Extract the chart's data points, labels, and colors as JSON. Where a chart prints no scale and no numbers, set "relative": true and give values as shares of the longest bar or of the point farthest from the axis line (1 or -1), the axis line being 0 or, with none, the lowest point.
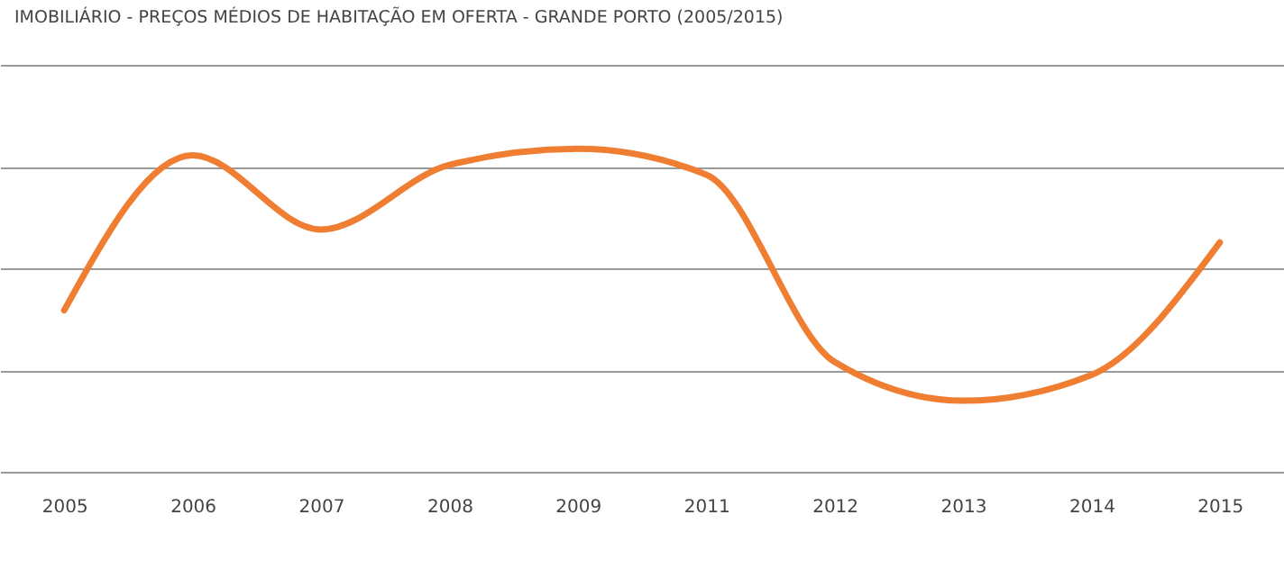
{
  "chart_data": {
    "type": "line",
    "title": "IMOBILIÁRIO - PREÇOS MÉDIOS DE HABITAÇÃO EM OFERTA - GRANDE PORTO (2005/2015)",
    "relative": true,
    "categories": [
      "2005",
      "2006",
      "2007",
      "2008",
      "2009",
      "2011",
      "2012",
      "2013",
      "2014",
      "2015"
    ],
    "series": [
      {
        "color": "#ef7d32",
        "values": [
          0.5,
          0.98,
          0.75,
          0.95,
          1,
          0.92,
          0.34,
          0.22,
          0.3,
          0.71
        ]
      }
    ],
    "grid": "y",
    "marker": "none",
    "line_style": "solid"
  }
}
